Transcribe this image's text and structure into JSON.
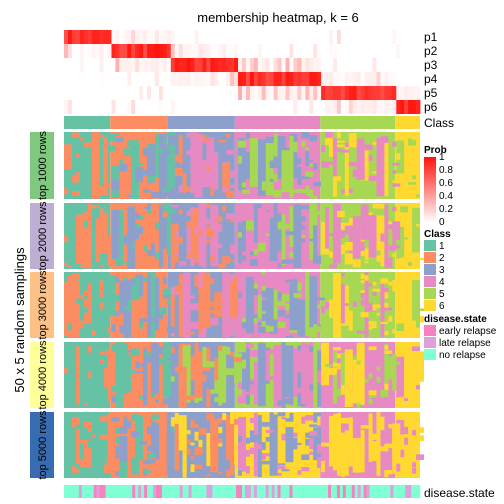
{
  "chart_data": {
    "type": "heatmap",
    "title": "membership heatmap, k = 6",
    "y_title": "50 x 5 random samplings",
    "top_rows": [
      "p1",
      "p2",
      "p3",
      "p4",
      "p5",
      "p6"
    ],
    "class_row_label": "Class",
    "bottom_row_label": "disease.state",
    "row_groups": [
      "top 1000 rows",
      "top 2000 rows",
      "top 3000 rows",
      "top 4000 rows",
      "top 5000 rows"
    ],
    "group_colors": [
      "#7FC97F",
      "#BEAED4",
      "#FDC086",
      "#FFFF99",
      "#386CB0"
    ],
    "class_levels": [
      "1",
      "2",
      "3",
      "4",
      "5",
      "6"
    ],
    "class_colors": [
      "#66C2A5",
      "#FC8D62",
      "#8DA0CB",
      "#E78AC3",
      "#A6D854",
      "#FFD92F"
    ],
    "class_column_fractions": [
      0.13,
      0.16,
      0.19,
      0.24,
      0.21,
      0.07
    ],
    "prob_legend": {
      "title": "Prob",
      "ticks": [
        "1",
        "0.8",
        "0.6",
        "0.4",
        "0.2",
        "0"
      ]
    },
    "class_legend_title": "Class",
    "disease_legend": {
      "title": "disease.state",
      "levels": [
        "early relapse",
        "late relapse",
        "no relapse"
      ],
      "colors": [
        "#F781BF",
        "#DDA0DD",
        "#7FFFD4"
      ]
    },
    "group_patterns": [
      [
        "1",
        "2",
        "3",
        "4",
        "5",
        "6"
      ],
      [
        "1",
        "2",
        "3",
        "4",
        "5",
        "6"
      ],
      [
        "1",
        "2",
        "3",
        "4",
        "5",
        "6"
      ],
      [
        "1",
        "2",
        "3",
        "5",
        "4",
        "6"
      ],
      [
        "1",
        "2",
        "3",
        "6",
        "4",
        "6"
      ]
    ]
  }
}
